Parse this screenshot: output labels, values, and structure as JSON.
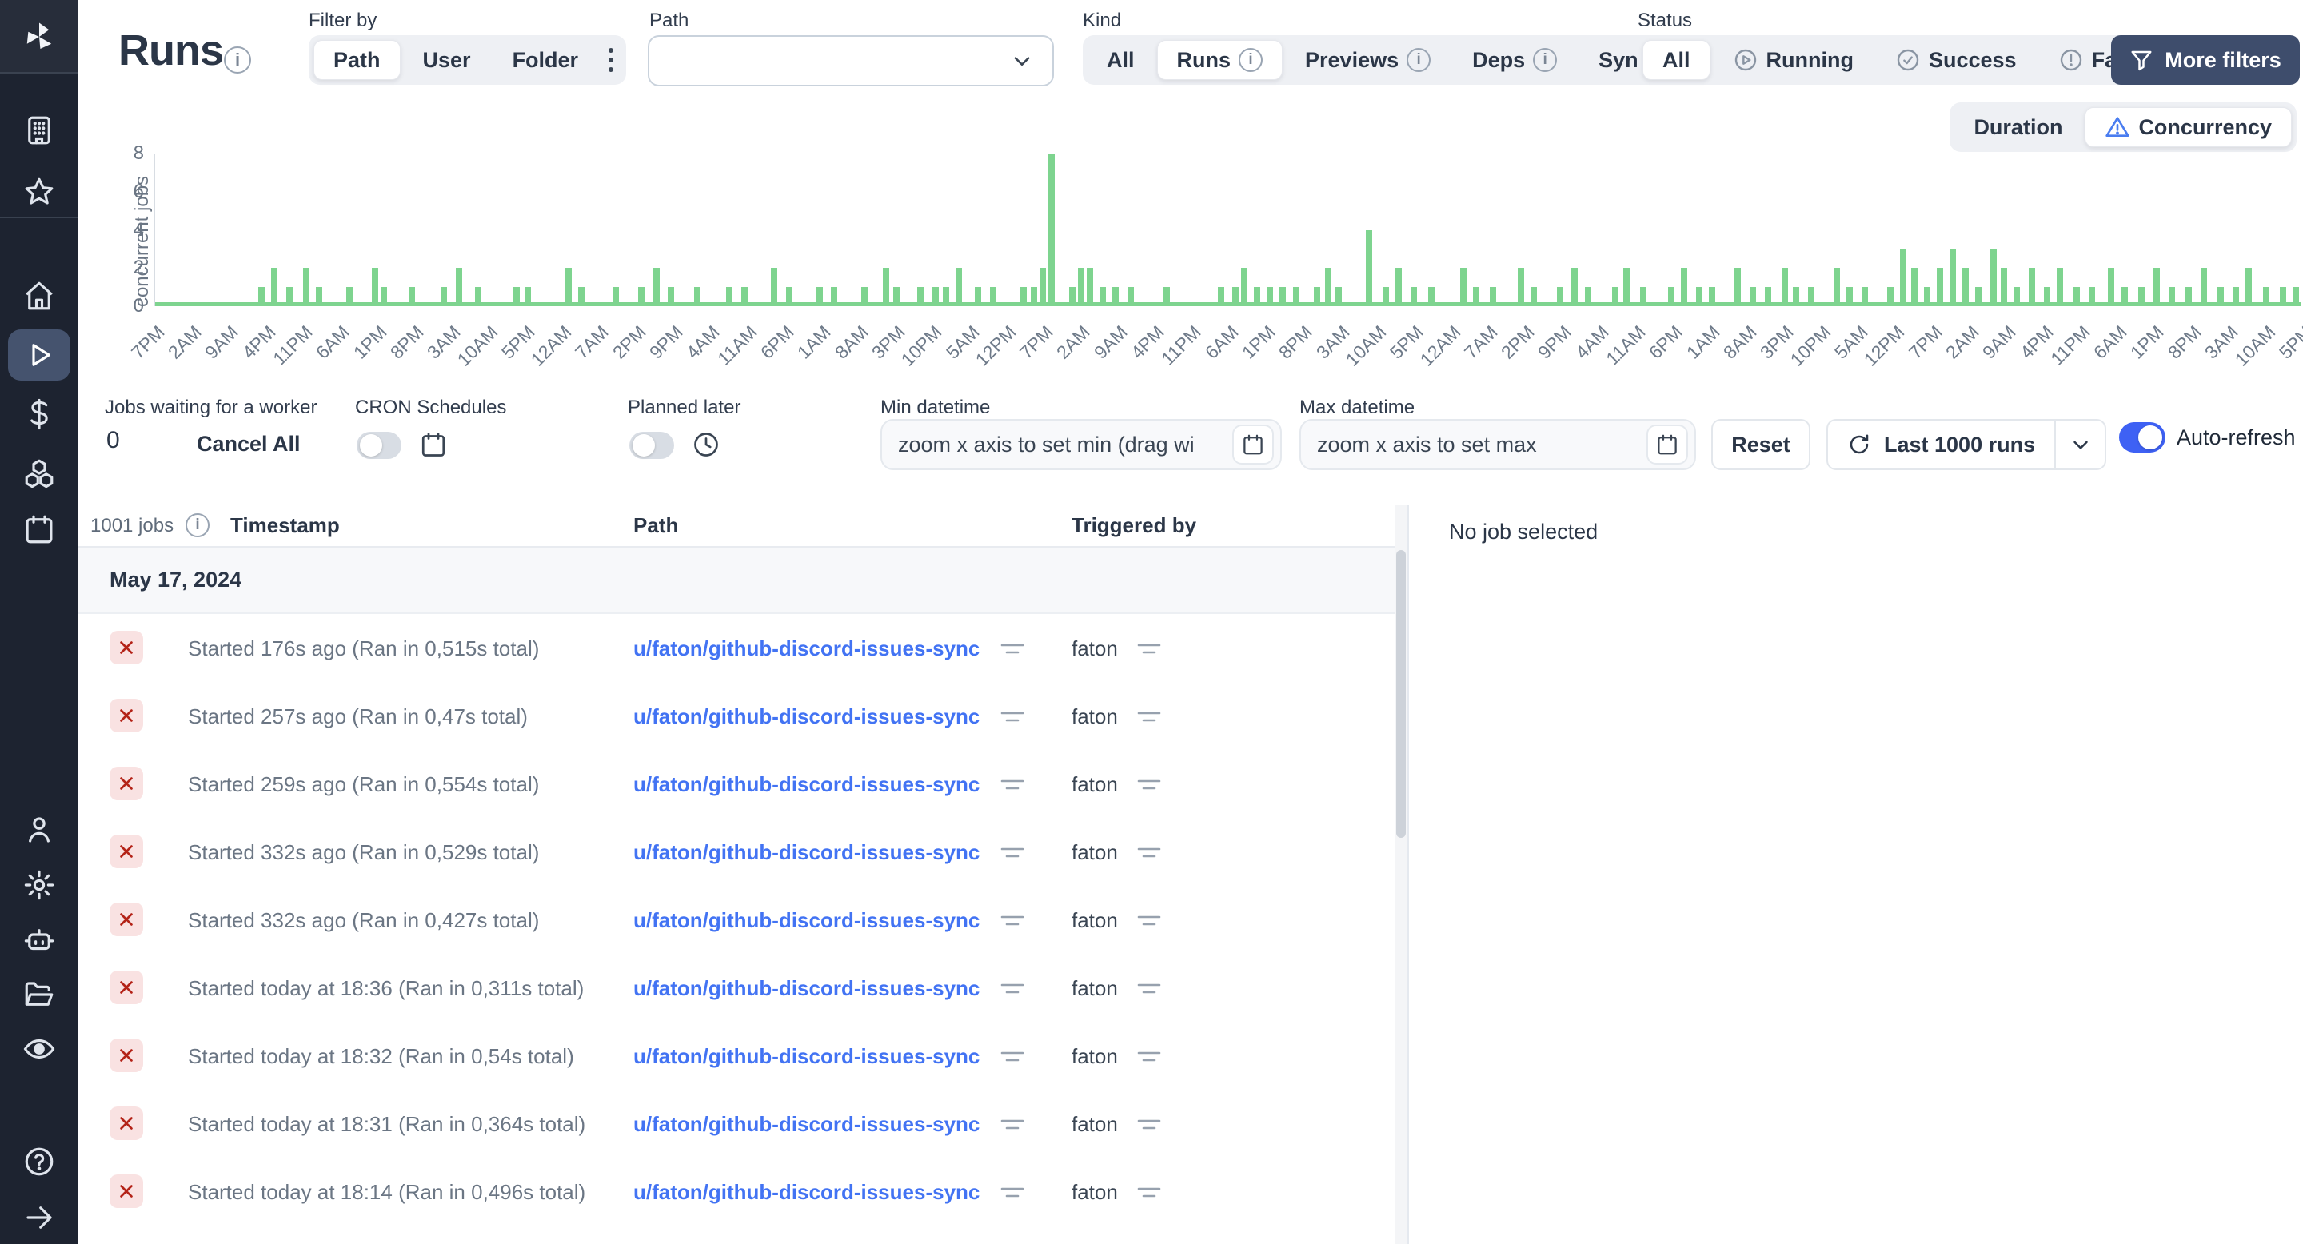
{
  "sidebar": {
    "items": [
      {
        "icon": "building-icon"
      },
      {
        "icon": "star-icon"
      },
      {
        "icon": "home-icon"
      },
      {
        "icon": "play-icon",
        "active": true
      },
      {
        "icon": "dollar-icon"
      },
      {
        "icon": "boxes-icon"
      },
      {
        "icon": "calendar-icon"
      },
      {
        "icon": "user-icon"
      },
      {
        "icon": "gear-icon"
      },
      {
        "icon": "robot-icon"
      },
      {
        "icon": "folder-open-icon"
      },
      {
        "icon": "eye-icon"
      },
      {
        "icon": "help-icon"
      },
      {
        "icon": "arrow-right-icon"
      }
    ]
  },
  "header": {
    "title": "Runs",
    "filter_by": {
      "label": "Filter by",
      "options": [
        "Path",
        "User",
        "Folder"
      ],
      "selected": "Path"
    },
    "path_filter": {
      "label": "Path",
      "value": ""
    },
    "kind": {
      "label": "Kind",
      "options": [
        "All",
        "Runs",
        "Previews",
        "Deps",
        "Sync"
      ],
      "selected": "Runs"
    },
    "status": {
      "label": "Status",
      "options": [
        "All",
        "Running",
        "Success",
        "Failure"
      ],
      "selected": "All"
    },
    "more_filters": "More filters"
  },
  "chart_data": {
    "type": "bar",
    "title": "",
    "xlabel": "",
    "ylabel": "concurrent jobs",
    "ylim": [
      0,
      8
    ],
    "yticks": [
      0,
      2,
      4,
      6,
      8
    ],
    "grid": false,
    "bar_color": "#7ed48f",
    "view_modes": {
      "options": [
        "Duration",
        "Concurrency"
      ],
      "selected": "Concurrency"
    },
    "x_labels": [
      "7PM",
      "2AM",
      "9AM",
      "4PM",
      "11PM",
      "6AM",
      "1PM",
      "8PM",
      "3AM",
      "10AM",
      "5PM",
      "12AM",
      "7AM",
      "2PM",
      "9PM",
      "4AM",
      "11AM",
      "6PM",
      "1AM",
      "8AM",
      "3PM",
      "10PM",
      "5AM",
      "12PM",
      "7PM",
      "2AM",
      "9AM",
      "4PM",
      "11PM",
      "6AM",
      "1PM",
      "8PM",
      "3AM",
      "10AM",
      "5PM",
      "12AM",
      "7AM",
      "2PM",
      "9PM",
      "4AM",
      "11AM",
      "6PM",
      "1AM",
      "8AM",
      "3PM",
      "10PM",
      "5AM",
      "12PM",
      "7PM",
      "2AM",
      "9AM",
      "4PM",
      "11PM",
      "6AM",
      "1PM",
      "8PM",
      "3AM",
      "10AM",
      "5PM"
    ],
    "bars": [
      [
        4.8,
        1
      ],
      [
        5.4,
        2
      ],
      [
        6.1,
        1
      ],
      [
        6.9,
        2
      ],
      [
        7.5,
        1
      ],
      [
        8.9,
        1
      ],
      [
        10.1,
        2
      ],
      [
        10.5,
        1
      ],
      [
        11.8,
        1
      ],
      [
        13.3,
        1
      ],
      [
        14.0,
        2
      ],
      [
        14.9,
        1
      ],
      [
        16.7,
        1
      ],
      [
        17.2,
        1
      ],
      [
        19.1,
        2
      ],
      [
        19.7,
        1
      ],
      [
        21.3,
        1
      ],
      [
        22.5,
        1
      ],
      [
        23.2,
        2
      ],
      [
        23.9,
        1
      ],
      [
        25.1,
        1
      ],
      [
        26.6,
        1
      ],
      [
        27.3,
        1
      ],
      [
        28.7,
        2
      ],
      [
        29.4,
        1
      ],
      [
        30.8,
        1
      ],
      [
        31.5,
        1
      ],
      [
        32.9,
        1
      ],
      [
        33.9,
        2
      ],
      [
        34.4,
        1
      ],
      [
        35.5,
        1
      ],
      [
        36.2,
        1
      ],
      [
        36.7,
        1
      ],
      [
        37.3,
        2
      ],
      [
        38.2,
        1
      ],
      [
        38.9,
        1
      ],
      [
        40.3,
        1
      ],
      [
        40.8,
        1
      ],
      [
        41.2,
        2
      ],
      [
        41.6,
        8
      ],
      [
        42.6,
        1
      ],
      [
        43.0,
        2
      ],
      [
        43.4,
        2
      ],
      [
        44.0,
        1
      ],
      [
        44.6,
        1
      ],
      [
        45.3,
        1
      ],
      [
        47.0,
        1
      ],
      [
        49.5,
        1
      ],
      [
        50.2,
        1
      ],
      [
        50.6,
        2
      ],
      [
        51.2,
        1
      ],
      [
        51.8,
        1
      ],
      [
        52.4,
        1
      ],
      [
        53.0,
        1
      ],
      [
        54.0,
        1
      ],
      [
        54.5,
        2
      ],
      [
        55.0,
        1
      ],
      [
        56.4,
        4
      ],
      [
        57.2,
        1
      ],
      [
        57.8,
        2
      ],
      [
        58.5,
        1
      ],
      [
        59.3,
        1
      ],
      [
        60.8,
        2
      ],
      [
        61.4,
        1
      ],
      [
        62.2,
        1
      ],
      [
        63.5,
        2
      ],
      [
        64.1,
        1
      ],
      [
        65.3,
        1
      ],
      [
        66.0,
        2
      ],
      [
        66.6,
        1
      ],
      [
        67.9,
        1
      ],
      [
        68.4,
        2
      ],
      [
        69.2,
        1
      ],
      [
        70.5,
        1
      ],
      [
        71.1,
        2
      ],
      [
        71.8,
        1
      ],
      [
        72.4,
        1
      ],
      [
        73.6,
        2
      ],
      [
        74.3,
        1
      ],
      [
        75.0,
        1
      ],
      [
        75.8,
        2
      ],
      [
        76.3,
        1
      ],
      [
        77.0,
        1
      ],
      [
        78.2,
        2
      ],
      [
        78.8,
        1
      ],
      [
        79.5,
        1
      ],
      [
        80.7,
        1
      ],
      [
        81.3,
        3
      ],
      [
        81.8,
        2
      ],
      [
        82.4,
        1
      ],
      [
        83.0,
        2
      ],
      [
        83.6,
        3
      ],
      [
        84.2,
        2
      ],
      [
        84.8,
        1
      ],
      [
        85.5,
        3
      ],
      [
        86.0,
        2
      ],
      [
        86.6,
        1
      ],
      [
        87.3,
        2
      ],
      [
        88.0,
        1
      ],
      [
        88.6,
        2
      ],
      [
        89.4,
        1
      ],
      [
        90.1,
        1
      ],
      [
        91.0,
        2
      ],
      [
        91.6,
        1
      ],
      [
        92.4,
        1
      ],
      [
        93.1,
        2
      ],
      [
        93.8,
        1
      ],
      [
        94.6,
        1
      ],
      [
        95.3,
        2
      ],
      [
        96.1,
        1
      ],
      [
        96.8,
        1
      ],
      [
        97.4,
        2
      ],
      [
        98.2,
        1
      ],
      [
        99.0,
        1
      ],
      [
        99.6,
        1
      ]
    ]
  },
  "toolbar": {
    "jobs_waiting": {
      "label": "Jobs waiting for a worker",
      "count": "0",
      "cancel_all": "Cancel All"
    },
    "cron_schedules": {
      "label": "CRON Schedules",
      "enabled": false
    },
    "planned_later": {
      "label": "Planned later",
      "enabled": false
    },
    "min_datetime": {
      "label": "Min datetime",
      "placeholder": "zoom x axis to set min (drag wi"
    },
    "max_datetime": {
      "label": "Max datetime",
      "placeholder": "zoom x axis to set max"
    },
    "reset": "Reset",
    "runs_range": "Last 1000 runs",
    "auto_refresh": {
      "label": "Auto-refresh",
      "enabled": true
    }
  },
  "table": {
    "count": "1001 jobs",
    "headers": {
      "timestamp": "Timestamp",
      "path": "Path",
      "triggered_by": "Triggered by"
    },
    "group_date": "May 17, 2024",
    "rows": [
      {
        "status": "failure",
        "timestamp": "Started 176s ago (Ran in 0,515s total)",
        "path": "u/faton/github-discord-issues-sync",
        "triggered_by": "faton"
      },
      {
        "status": "failure",
        "timestamp": "Started 257s ago (Ran in 0,47s total)",
        "path": "u/faton/github-discord-issues-sync",
        "triggered_by": "faton"
      },
      {
        "status": "failure",
        "timestamp": "Started 259s ago (Ran in 0,554s total)",
        "path": "u/faton/github-discord-issues-sync",
        "triggered_by": "faton"
      },
      {
        "status": "failure",
        "timestamp": "Started 332s ago (Ran in 0,529s total)",
        "path": "u/faton/github-discord-issues-sync",
        "triggered_by": "faton"
      },
      {
        "status": "failure",
        "timestamp": "Started 332s ago (Ran in 0,427s total)",
        "path": "u/faton/github-discord-issues-sync",
        "triggered_by": "faton"
      },
      {
        "status": "failure",
        "timestamp": "Started today at 18:36 (Ran in 0,311s total)",
        "path": "u/faton/github-discord-issues-sync",
        "triggered_by": "faton"
      },
      {
        "status": "failure",
        "timestamp": "Started today at 18:32 (Ran in 0,54s total)",
        "path": "u/faton/github-discord-issues-sync",
        "triggered_by": "faton"
      },
      {
        "status": "failure",
        "timestamp": "Started today at 18:31 (Ran in 0,364s total)",
        "path": "u/faton/github-discord-issues-sync",
        "triggered_by": "faton"
      },
      {
        "status": "failure",
        "timestamp": "Started today at 18:14 (Ran in 0,496s total)",
        "path": "u/faton/github-discord-issues-sync",
        "triggered_by": "faton"
      }
    ]
  },
  "detail": {
    "empty": "No job selected"
  }
}
